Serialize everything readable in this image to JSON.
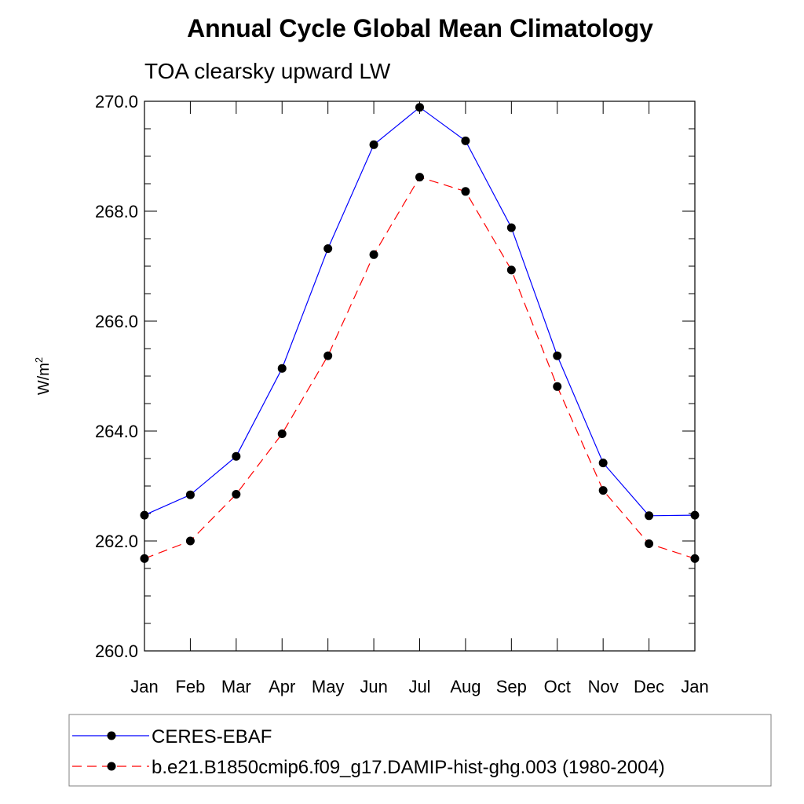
{
  "chart_data": {
    "type": "line",
    "title": "Annual Cycle Global Mean Climatology",
    "subtitle": "TOA clearsky upward LW",
    "ylabel": "W/m",
    "ylabel_superscript": "2",
    "ylim": [
      260.0,
      270.0
    ],
    "yticks": [
      "260.0",
      "262.0",
      "264.0",
      "266.0",
      "268.0",
      "270.0"
    ],
    "categories": [
      "Jan",
      "Feb",
      "Mar",
      "Apr",
      "May",
      "Jun",
      "Jul",
      "Aug",
      "Sep",
      "Oct",
      "Nov",
      "Dec",
      "Jan"
    ],
    "grid": false,
    "legend_position": "bottom",
    "series": [
      {
        "name": "CERES-EBAF",
        "color": "#0000ff",
        "dash": "solid",
        "marker": "filled-circle",
        "values": [
          262.47,
          262.84,
          263.54,
          265.14,
          267.32,
          269.21,
          269.89,
          269.28,
          267.7,
          265.37,
          263.42,
          262.46,
          262.47
        ]
      },
      {
        "name": "b.e21.B1850cmip6.f09_g17.DAMIP-hist-ghg.003 (1980-2004)",
        "color": "#ff0000",
        "dash": "dashed",
        "marker": "filled-circle",
        "values": [
          261.68,
          262.0,
          262.85,
          263.95,
          265.37,
          267.21,
          268.62,
          268.36,
          266.93,
          264.81,
          262.92,
          261.95,
          261.68
        ]
      }
    ]
  }
}
